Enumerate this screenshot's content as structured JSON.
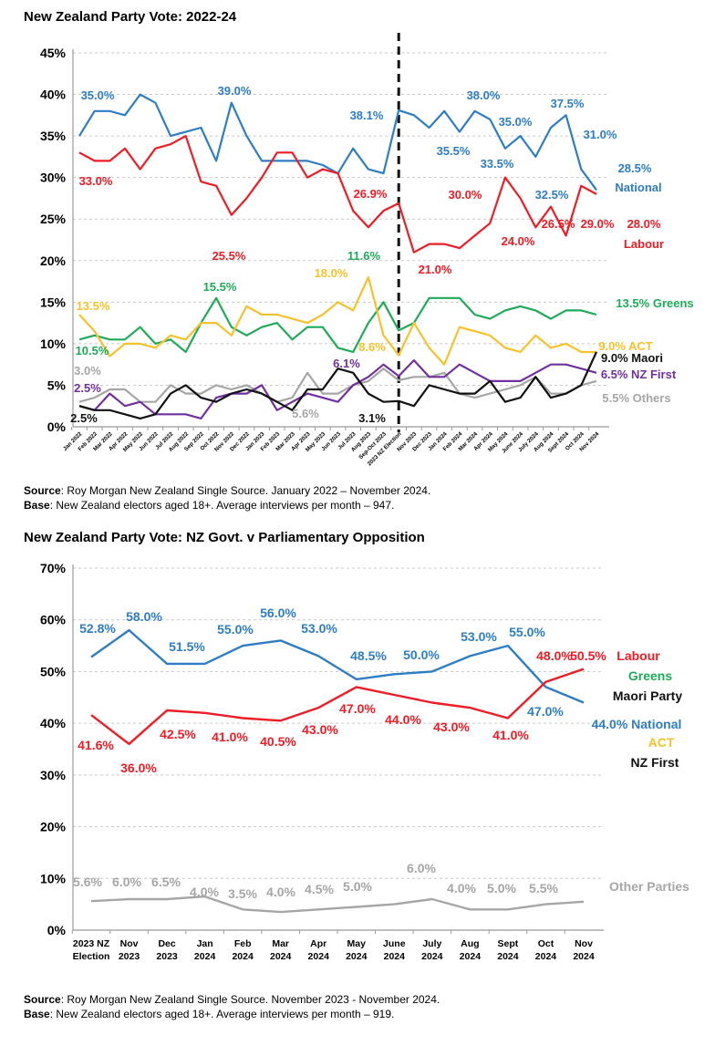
{
  "colors": {
    "national": "#2e7dc4",
    "labour": "#ee1c25",
    "greens": "#1faa59",
    "act": "#f5c22b",
    "maori": "#111111",
    "nzfirst": "#7030a0",
    "others": "#a6a6a6",
    "govt": "#2e7dc4",
    "opposition": "#ee1c25"
  },
  "source1": {
    "source_label": "Source",
    "source_text": ": Roy Morgan New Zealand Single Source. January 2022 – November 2024.",
    "base_label": "Base",
    "base_text": ": New Zealand electors aged 18+. Average interviews per month – 947."
  },
  "source2": {
    "source_label": "Source",
    "source_text": ": Roy Morgan New Zealand Single Source. November 2023 - November 2024.",
    "base_label": "Base",
    "base_text": ": New Zealand electors aged 18+. Average interviews per month – 919."
  },
  "chart_data": [
    {
      "type": "line",
      "title": "New Zealand Party Vote: 2022-24",
      "ylim": [
        0,
        45
      ],
      "yticks": [
        "0%",
        "5%",
        "10%",
        "15%",
        "20%",
        "25%",
        "30%",
        "35%",
        "40%",
        "45%"
      ],
      "grid": true,
      "divider_at": "2023 NZ Election",
      "categories": [
        "Jan 2022",
        "Feb 2022",
        "Mar 2022",
        "Apr 2022",
        "May 2022",
        "Jun 2022",
        "Jul 2022",
        "Aug 2022",
        "Sep 2022",
        "Oct 2022",
        "Nov 2022",
        "Dec 2022",
        "Jan 2023",
        "Feb 2023",
        "Mar 2023",
        "Apr 2023",
        "May 2023",
        "Jun 2023",
        "Jul 2023",
        "Aug 2023",
        "Sep-Oct 2023",
        "2023 NZ Election",
        "Nov 2023",
        "Dec 2023",
        "Jan 2024",
        "Feb 2024",
        "Mar 2024",
        "Apr 2024",
        "May 2024",
        "June 2024",
        "July 2024",
        "Aug 2024",
        "Sept 2024",
        "Oct 2024",
        "Nov 2024"
      ],
      "series": [
        {
          "key": "national",
          "name": "National",
          "values": [
            35,
            38,
            38,
            37.5,
            40,
            39,
            35,
            35.5,
            36,
            32,
            39,
            35,
            32,
            32,
            32,
            32,
            31.5,
            30.5,
            33.5,
            31,
            30.5,
            38.1,
            37.5,
            36,
            38,
            35.5,
            38,
            37,
            33.5,
            35,
            32.5,
            36,
            37.5,
            31,
            28.5
          ]
        },
        {
          "key": "labour",
          "name": "Labour",
          "values": [
            33,
            32,
            32,
            33.5,
            31,
            33.5,
            34,
            35,
            29.5,
            29,
            25.5,
            27.5,
            30,
            33,
            33,
            30,
            31,
            30.5,
            26,
            24,
            26,
            26.9,
            21,
            22,
            22,
            21.5,
            23,
            24.5,
            30,
            27.5,
            24,
            26.5,
            23,
            29,
            28
          ]
        },
        {
          "key": "greens",
          "name": "Greens",
          "values": [
            10.5,
            11,
            10.5,
            10.5,
            12,
            10,
            10.5,
            9,
            12.5,
            15.5,
            12,
            11,
            12,
            12.5,
            10.5,
            12,
            12,
            9.5,
            9,
            12.5,
            15,
            11.6,
            12.5,
            15.5,
            15.5,
            15.5,
            13.5,
            13,
            14,
            14.5,
            14,
            13,
            14,
            14,
            13.5
          ]
        },
        {
          "key": "act",
          "name": "ACT",
          "values": [
            13.5,
            11.5,
            8.5,
            10,
            10,
            9.5,
            11,
            10.5,
            12.5,
            12.5,
            11,
            14.5,
            13.5,
            13.5,
            13,
            12.5,
            13.5,
            15,
            14,
            18,
            11,
            8.6,
            12.5,
            9.5,
            7.5,
            12,
            11.5,
            11,
            9.5,
            9,
            11,
            9.5,
            10,
            9,
            9
          ]
        },
        {
          "key": "others",
          "name": "Others",
          "values": [
            3,
            3.5,
            4.5,
            4.5,
            3,
            3,
            5,
            4,
            4,
            5,
            4.5,
            5,
            4,
            3,
            3.5,
            6.5,
            4,
            4,
            5,
            5.5,
            7,
            5.6,
            6,
            6,
            6.5,
            4,
            3.5,
            4,
            4.5,
            5,
            6,
            4,
            4,
            5,
            5.5
          ]
        },
        {
          "key": "nzfirst",
          "name": "NZ First",
          "values": [
            2.5,
            2,
            4,
            2.5,
            3,
            1.5,
            1.5,
            1.5,
            1,
            3.5,
            4,
            4,
            5,
            2,
            3,
            4,
            3.5,
            3,
            5,
            6,
            7.5,
            6.1,
            8,
            6,
            6,
            7.5,
            6.5,
            5.5,
            5.5,
            5.5,
            6.5,
            7.5,
            7.5,
            7,
            6.5
          ]
        },
        {
          "key": "maori",
          "name": "Maori",
          "values": [
            2.5,
            2,
            2,
            1.5,
            1,
            1.5,
            4,
            5,
            3.5,
            3,
            4,
            4.5,
            4,
            3,
            2,
            4.5,
            4.5,
            7,
            6.5,
            4,
            3,
            3.1,
            2.5,
            5,
            4.5,
            4,
            4,
            5.5,
            3,
            3.5,
            6,
            3.5,
            4,
            5,
            9
          ]
        }
      ],
      "annotations": [
        {
          "text": "35.0%",
          "series": "national"
        },
        {
          "text": "39.0%",
          "series": "national"
        },
        {
          "text": "38.1%",
          "series": "national"
        },
        {
          "text": "38.0%",
          "series": "national"
        },
        {
          "text": "35.0%",
          "series": "national"
        },
        {
          "text": "37.5%",
          "series": "national"
        },
        {
          "text": "35.5%",
          "series": "national"
        },
        {
          "text": "33.5%",
          "series": "national"
        },
        {
          "text": "32.5%",
          "series": "national"
        },
        {
          "text": "31.0%",
          "series": "national"
        },
        {
          "text": "28.5%",
          "series": "national"
        },
        {
          "text": "National",
          "series": "national"
        },
        {
          "text": "33.0%",
          "series": "labour"
        },
        {
          "text": "25.5%",
          "series": "labour"
        },
        {
          "text": "26.9%",
          "series": "labour"
        },
        {
          "text": "30.0%",
          "series": "labour"
        },
        {
          "text": "21.0%",
          "series": "labour"
        },
        {
          "text": "24.0%",
          "series": "labour"
        },
        {
          "text": "26.5%",
          "series": "labour"
        },
        {
          "text": "29.0%",
          "series": "labour"
        },
        {
          "text": "28.0%",
          "series": "labour"
        },
        {
          "text": "Labour",
          "series": "labour"
        },
        {
          "text": "13.5%",
          "series": "act"
        },
        {
          "text": "15.5%",
          "series": "greens"
        },
        {
          "text": "11.6%",
          "series": "greens"
        },
        {
          "text": "18.0%",
          "series": "act"
        },
        {
          "text": "10.5%",
          "series": "greens"
        },
        {
          "text": "8.6%",
          "series": "act"
        },
        {
          "text": "13.5% Greens",
          "series": "greens"
        },
        {
          "text": "9.0% ACT",
          "series": "act"
        },
        {
          "text": "9.0% Maori",
          "series": "maori"
        },
        {
          "text": "6.5% NZ First",
          "series": "nzfirst"
        },
        {
          "text": "5.5% Others",
          "series": "others"
        },
        {
          "text": "3.0%",
          "series": "others"
        },
        {
          "text": "2.5%",
          "series": "nzfirst"
        },
        {
          "text": "2.5%",
          "series": "maori"
        },
        {
          "text": "5.6%",
          "series": "others"
        },
        {
          "text": "6.1%",
          "series": "nzfirst"
        },
        {
          "text": "3.1%",
          "series": "maori"
        }
      ]
    },
    {
      "type": "line",
      "title": "New Zealand Party Vote: NZ Govt. v Parliamentary Opposition",
      "ylim": [
        0,
        70
      ],
      "yticks": [
        "0%",
        "10%",
        "20%",
        "30%",
        "40%",
        "50%",
        "60%",
        "70%"
      ],
      "grid": true,
      "categories": [
        "2023 NZ Election",
        "Nov 2023",
        "Dec 2023",
        "Jan 2024",
        "Feb 2024",
        "Mar 2024",
        "Apr 2024",
        "May 2024",
        "June 2024",
        "July 2024",
        "Aug 2024",
        "Sept 2024",
        "Oct 2024",
        "Nov 2024"
      ],
      "series": [
        {
          "key": "govt",
          "name": "National / ACT / NZ First",
          "values": [
            52.8,
            58,
            51.5,
            51.5,
            55,
            56,
            53,
            48.5,
            49.5,
            50,
            53,
            55,
            47,
            44
          ]
        },
        {
          "key": "opposition",
          "name": "Labour / Greens / Maori Party",
          "values": [
            41.6,
            36,
            42.5,
            42,
            41,
            40.5,
            43,
            47,
            45.5,
            44,
            43,
            41,
            48,
            50.5
          ]
        },
        {
          "key": "others",
          "name": "Other Parties",
          "values": [
            5.6,
            6,
            6,
            6.5,
            4,
            3.5,
            4,
            4.5,
            5,
            6,
            4,
            4,
            5,
            5.5
          ]
        }
      ],
      "annotations": [
        {
          "text": "52.8%",
          "series": "govt"
        },
        {
          "text": "58.0%",
          "series": "govt"
        },
        {
          "text": "51.5%",
          "series": "govt"
        },
        {
          "text": "55.0%",
          "series": "govt"
        },
        {
          "text": "56.0%",
          "series": "govt"
        },
        {
          "text": "53.0%",
          "series": "govt"
        },
        {
          "text": "48.5%",
          "series": "govt"
        },
        {
          "text": "50.0%",
          "series": "govt"
        },
        {
          "text": "53.0%",
          "series": "govt"
        },
        {
          "text": "55.0%",
          "series": "govt"
        },
        {
          "text": "47.0%",
          "series": "govt"
        },
        {
          "text": "44.0% National",
          "series": "govt"
        },
        {
          "text": "41.6%",
          "series": "opposition"
        },
        {
          "text": "36.0%",
          "series": "opposition"
        },
        {
          "text": "42.5%",
          "series": "opposition"
        },
        {
          "text": "41.0%",
          "series": "opposition"
        },
        {
          "text": "40.5%",
          "series": "opposition"
        },
        {
          "text": "43.0%",
          "series": "opposition"
        },
        {
          "text": "47.0%",
          "series": "opposition"
        },
        {
          "text": "44.0%",
          "series": "opposition"
        },
        {
          "text": "43.0%",
          "series": "opposition"
        },
        {
          "text": "41.0%",
          "series": "opposition"
        },
        {
          "text": "48.0%",
          "series": "opposition"
        },
        {
          "text": "50.5%",
          "series": "opposition"
        },
        {
          "text": "Labour",
          "series": "opposition"
        },
        {
          "text": "Greens",
          "series": "greens"
        },
        {
          "text": "Maori Party",
          "series": "maori"
        },
        {
          "text": "ACT",
          "series": "act"
        },
        {
          "text": "NZ First",
          "series": "maori"
        },
        {
          "text": "5.6%",
          "series": "others"
        },
        {
          "text": "6.0%",
          "series": "others"
        },
        {
          "text": "6.5%",
          "series": "others"
        },
        {
          "text": "4.0%",
          "series": "others"
        },
        {
          "text": "3.5%",
          "series": "others"
        },
        {
          "text": "4.0%",
          "series": "others"
        },
        {
          "text": "4.5%",
          "series": "others"
        },
        {
          "text": "5.0%",
          "series": "others"
        },
        {
          "text": "6.0%",
          "series": "others"
        },
        {
          "text": "4.0%",
          "series": "others"
        },
        {
          "text": "5.0%",
          "series": "others"
        },
        {
          "text": "5.5%",
          "series": "others"
        },
        {
          "text": "Other Parties",
          "series": "others"
        }
      ]
    }
  ]
}
